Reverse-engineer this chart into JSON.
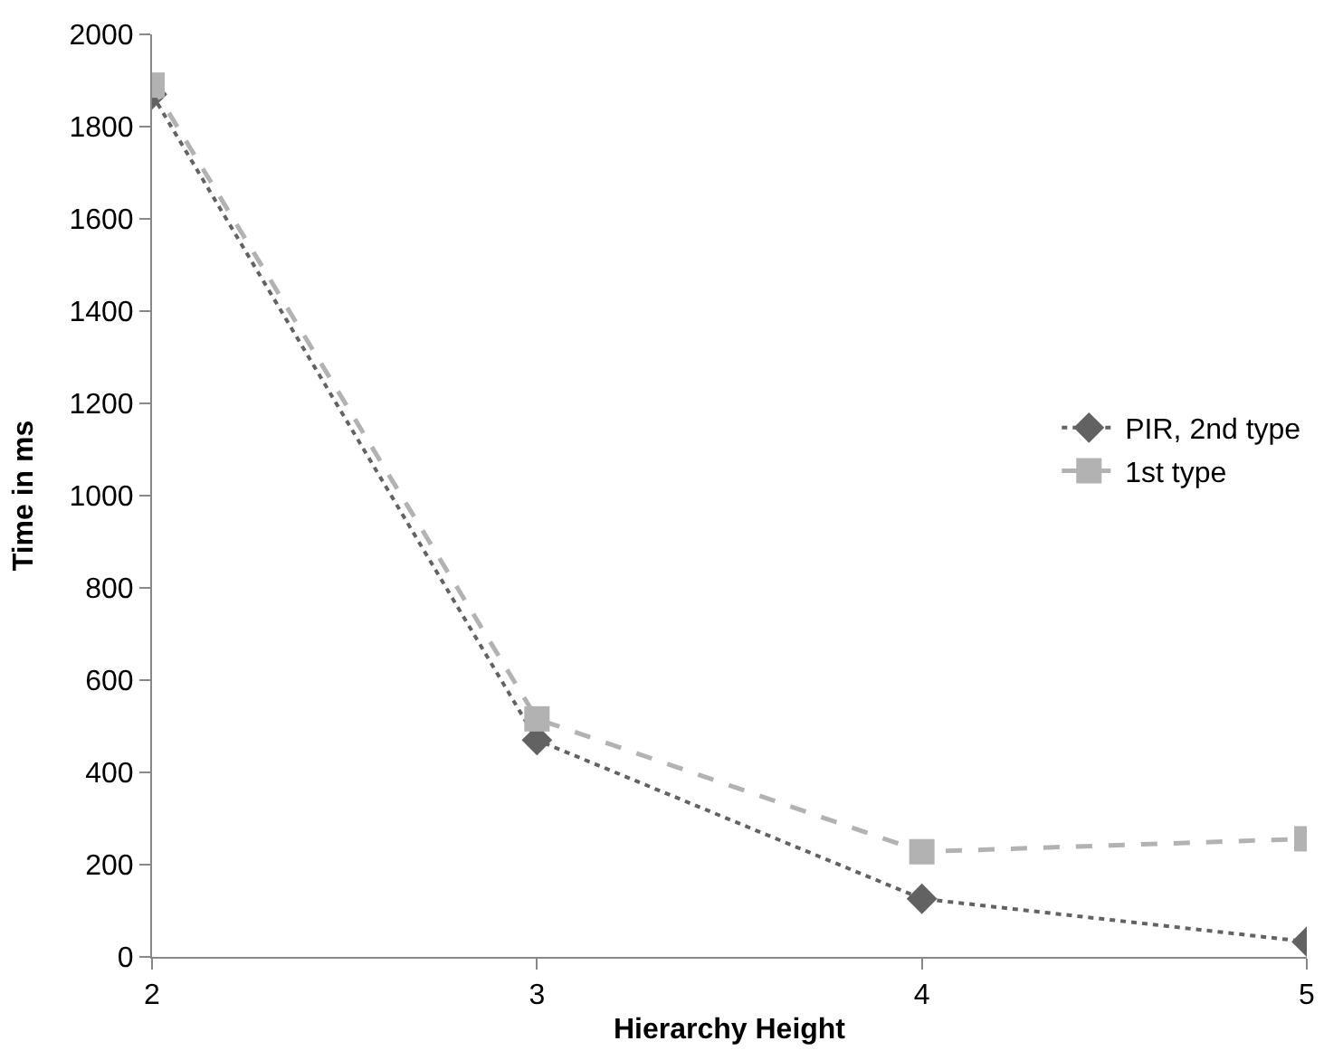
{
  "chart_data": {
    "type": "line",
    "xlabel": "Hierarchy Height",
    "ylabel": "Time in ms",
    "x": [
      2,
      3,
      4,
      5
    ],
    "xlim": [
      2,
      5
    ],
    "xticks": [
      2,
      3,
      4,
      5
    ],
    "ylim": [
      0,
      2000
    ],
    "yticks": [
      0,
      200,
      400,
      600,
      800,
      1000,
      1200,
      1400,
      1600,
      1800,
      2000
    ],
    "legend": "right",
    "series": [
      {
        "name": "PIR, 2nd type",
        "color": "#626262",
        "marker": "diamond",
        "line_style": "dotted",
        "values": [
          1870,
          470,
          126,
          33
        ]
      },
      {
        "name": "1st type",
        "color": "#b2b2b2",
        "marker": "square",
        "line_style": "dashed",
        "values": [
          1890,
          516,
          228,
          256
        ]
      }
    ]
  }
}
